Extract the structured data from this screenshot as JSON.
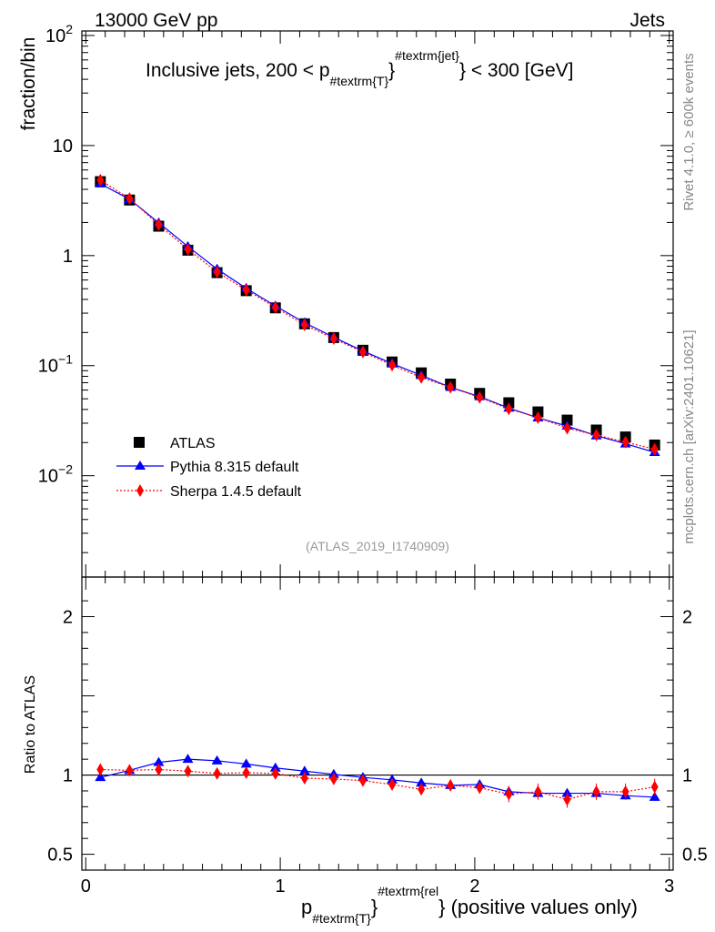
{
  "header": {
    "left": "13000 GeV pp",
    "right": "Jets"
  },
  "side_labels": {
    "rivet": "Rivet 4.1.0, ≥ 600k events",
    "mcplots": "mcplots.cern.ch [arXiv:2401.10621]"
  },
  "chart_data": {
    "type": "scatter",
    "title_main": "Inclusive jets, 200 < p",
    "title_sub": "#textrm{T}",
    "title_sup": "#textrm{jet}",
    "title_end": "} < 300 [GeV]",
    "analysis_label": "(ATLAS_2019_I1740909)",
    "xlabel": {
      "main": "p",
      "sub": "#textrm{T}",
      "sup": "#textrm{rel",
      "end": "} (positive values only)"
    },
    "ylabel": "fraction/bin",
    "ratio_ylabel": "Ratio to ATLAS",
    "xlim": [
      -0.02,
      3.02
    ],
    "ylim": [
      0.0012,
      110
    ],
    "ratio_ylim": [
      0.4,
      2.25
    ],
    "x_ticks": [
      "0",
      "1",
      "2",
      "3"
    ],
    "x_tick_values": [
      0,
      1,
      2,
      3
    ],
    "y_ticks": [
      {
        "value": 0.01,
        "base": "10",
        "exp": "−2"
      },
      {
        "value": 0.1,
        "base": "10",
        "exp": "−1"
      },
      {
        "value": 1,
        "label": "1"
      },
      {
        "value": 10,
        "label": "10"
      },
      {
        "value": 100,
        "base": "10",
        "exp": "2"
      }
    ],
    "ratio_ticks": [
      {
        "value": 0.5,
        "label": "0.5"
      },
      {
        "value": 1,
        "label": "1"
      },
      {
        "value": 2,
        "label": "2"
      }
    ],
    "x": [
      0.075,
      0.225,
      0.375,
      0.525,
      0.675,
      0.825,
      0.975,
      1.125,
      1.275,
      1.425,
      1.575,
      1.725,
      1.875,
      2.025,
      2.175,
      2.325,
      2.475,
      2.625,
      2.775,
      2.925
    ],
    "series": [
      {
        "name": "ATLAS",
        "color": "#000000",
        "marker": "square",
        "values": [
          4.7,
          3.2,
          1.85,
          1.12,
          0.7,
          0.48,
          0.335,
          0.24,
          0.18,
          0.138,
          0.108,
          0.086,
          0.068,
          0.056,
          0.046,
          0.038,
          0.032,
          0.026,
          0.0225,
          0.019
        ]
      },
      {
        "name": "Pythia 8.315 default",
        "color": "#0000ff",
        "marker": "triangle",
        "line": "solid",
        "values": [
          4.5,
          3.25,
          1.99,
          1.21,
          0.755,
          0.505,
          0.349,
          0.246,
          0.181,
          0.136,
          0.1045,
          0.0815,
          0.0636,
          0.0523,
          0.0412,
          0.0336,
          0.0283,
          0.0231,
          0.0195,
          0.0163
        ],
        "ratio": [
          0.985,
          1.03,
          1.08,
          1.1,
          1.09,
          1.07,
          1.045,
          1.025,
          1.005,
          0.985,
          0.97,
          0.95,
          0.935,
          0.94,
          0.895,
          0.885,
          0.885,
          0.885,
          0.87,
          0.86
        ]
      },
      {
        "name": "Sherpa 1.4.5 default",
        "color": "#ff0000",
        "marker": "diamond",
        "line": "dotted",
        "values": [
          4.85,
          3.3,
          1.91,
          1.14,
          0.71,
          0.487,
          0.338,
          0.235,
          0.176,
          0.133,
          0.101,
          0.078,
          0.0636,
          0.0515,
          0.0405,
          0.0337,
          0.027,
          0.0234,
          0.0202,
          0.0174
        ],
        "ratio": [
          1.035,
          1.03,
          1.035,
          1.025,
          1.01,
          1.015,
          1.01,
          0.98,
          0.975,
          0.965,
          0.94,
          0.91,
          0.935,
          0.92,
          0.88,
          0.895,
          0.845,
          0.895,
          0.895,
          0.925
        ]
      }
    ]
  }
}
